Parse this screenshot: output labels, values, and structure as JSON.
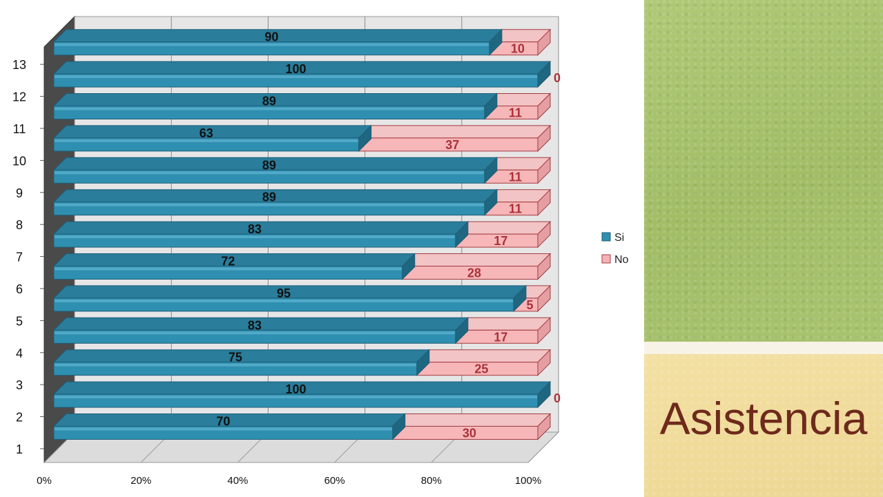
{
  "slide": {
    "title": "Asistencia"
  },
  "chart_data": {
    "type": "bar",
    "orientation": "horizontal",
    "stacked": "100%",
    "categories": [
      "1",
      "2",
      "3",
      "4",
      "5",
      "6",
      "7",
      "8",
      "9",
      "10",
      "11",
      "12",
      "13"
    ],
    "series": [
      {
        "name": "Si",
        "color": "#2f8fb0",
        "values": [
          70,
          100,
          75,
          83,
          95,
          72,
          83,
          89,
          89,
          63,
          89,
          100,
          90
        ]
      },
      {
        "name": "No",
        "color": "#f6b2b4",
        "values": [
          30,
          0,
          25,
          17,
          5,
          28,
          17,
          11,
          11,
          37,
          11,
          0,
          10
        ]
      }
    ],
    "x_ticks": [
      "0%",
      "20%",
      "40%",
      "60%",
      "80%",
      "100%"
    ],
    "xlim": [
      0,
      100
    ],
    "title": "",
    "xlabel": "",
    "ylabel": "",
    "grid": true,
    "legend_placement": "right"
  }
}
